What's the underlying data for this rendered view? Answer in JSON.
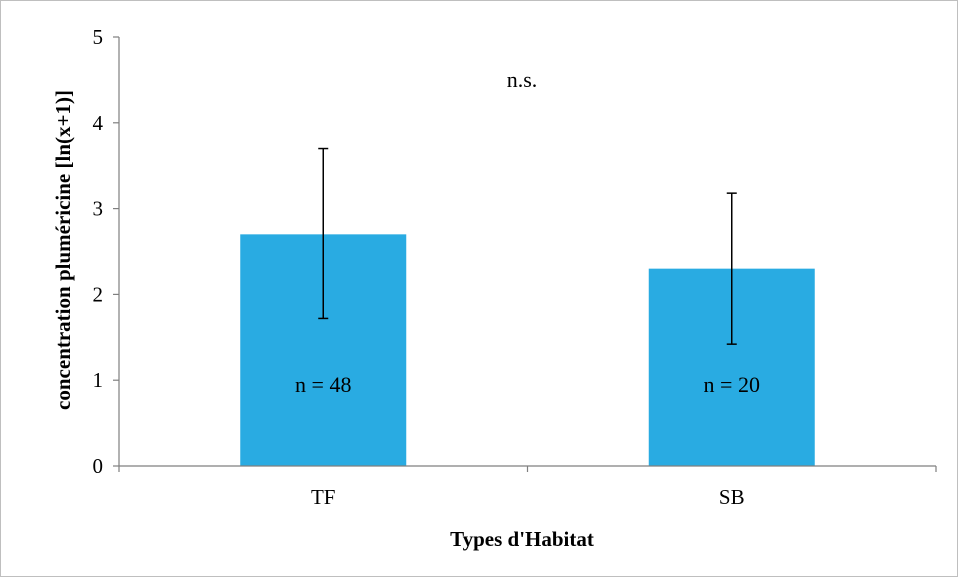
{
  "chart_data": {
    "type": "bar",
    "categories": [
      "TF",
      "SB"
    ],
    "values": [
      2.7,
      2.3
    ],
    "error_bars": [
      {
        "low": 1.72,
        "high": 3.7
      },
      {
        "low": 1.42,
        "high": 3.18
      }
    ],
    "bar_labels": [
      "n = 48",
      "n = 20"
    ],
    "annotation": "n.s.",
    "xlabel": "Types d'Habitat",
    "ylabel": "concentration pluméricine [ln(x+1)]",
    "ylim": [
      0,
      5
    ],
    "yticks": [
      "0",
      "1",
      "2",
      "3",
      "4",
      "5"
    ],
    "grid": false,
    "bar_color": "#29abe2",
    "axis_color": "#7f7f7f"
  }
}
